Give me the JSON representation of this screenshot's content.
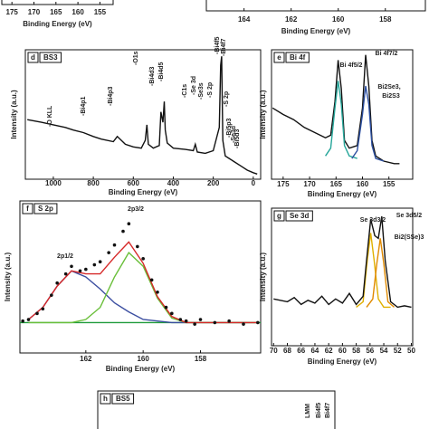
{
  "chart_data": [
    {
      "type": "line",
      "xlim": [
        177.3,
        152
      ],
      "xticks": [
        175,
        170,
        165,
        160,
        155
      ],
      "xlabel": "Binding Energy (eV)"
    },
    {
      "type": "line",
      "xlim": [
        165.6,
        156.3
      ],
      "xticks": [
        164,
        162,
        160,
        158
      ],
      "xlabel": "Binding Energy (eV)"
    },
    {
      "type": "line",
      "panel": "d",
      "title": "BS3",
      "xlim": [
        1140,
        -37
      ],
      "ylim": [
        0,
        100
      ],
      "xticks": [
        1000,
        800,
        600,
        400,
        200,
        0
      ],
      "xlabel": "Binding Energy (eV)",
      "ylabel": "Intensity (a.u.)",
      "series": [
        {
          "color": "#111111",
          "x": [
            1130,
            1060,
            1000,
            940,
            900,
            850,
            800,
            760,
            700,
            680,
            640,
            600,
            560,
            540,
            532,
            525,
            500,
            470,
            462,
            452,
            445,
            440,
            430,
            400,
            340,
            300,
            290,
            280,
            240,
            200,
            170,
            163,
            158,
            152,
            140,
            100,
            60,
            30,
            0,
            -20
          ],
          "values": [
            46,
            44,
            42,
            40,
            38,
            36,
            33,
            31,
            29,
            33,
            27,
            25,
            24,
            30,
            42,
            27,
            24,
            26,
            52,
            44,
            60,
            38,
            28,
            24,
            23,
            22,
            27,
            21,
            20,
            22,
            40,
            88,
            95,
            30,
            18,
            14,
            10,
            7,
            5,
            4
          ]
        }
      ],
      "annotations": [
        "-O KLL",
        "-Bi4p1",
        "-Bi4p3",
        "-O1s",
        "-Bi4d3",
        "-Bi4d5",
        "-C1s",
        "-Se 3d",
        "-Se3s",
        "-S 2p",
        "-Bi4f5",
        "-Bi4f7",
        "-S 2p",
        "-Bi5p3",
        "-Se3d",
        "-Bi5d3"
      ]
    },
    {
      "type": "line",
      "panel": "e",
      "title": "Bi 4f",
      "xlim": [
        177.2,
        150.5
      ],
      "ylim": [
        0,
        100
      ],
      "xticks": [
        175,
        170,
        165,
        160,
        155
      ],
      "xlabel": "Binding Energy (eV)",
      "ylabel": "Intensity (a.u.)",
      "series": [
        {
          "color": "#111111",
          "x": [
            177,
            175,
            173,
            171,
            169,
            167,
            166,
            165.2,
            164.6,
            164,
            163.4,
            162.5,
            161,
            160,
            159.4,
            158.8,
            158.2,
            157.5,
            156,
            154,
            153
          ],
          "values": [
            55,
            50,
            46,
            40,
            36,
            32,
            34,
            60,
            92,
            70,
            30,
            24,
            26,
            55,
            96,
            72,
            30,
            18,
            14,
            12,
            12
          ]
        },
        {
          "color": "#26a69a",
          "x": [
            167,
            166,
            165.2,
            164.6,
            164,
            163.4,
            162.5,
            161
          ],
          "values": [
            18,
            24,
            55,
            76,
            58,
            26,
            18,
            16
          ]
        },
        {
          "color": "#2c4fa0",
          "x": [
            162,
            161,
            160,
            159.4,
            158.8,
            158.2,
            157.5,
            156
          ],
          "values": [
            16,
            22,
            50,
            72,
            58,
            26,
            16,
            14
          ]
        }
      ],
      "annotations": [
        "Bi 4f5/2",
        "Bi 4f7/2",
        "Bi2Se3,",
        "Bi2S3"
      ]
    },
    {
      "type": "line",
      "panel": "f",
      "title": "S 2p",
      "xlim": [
        164.3,
        155.9
      ],
      "ylim": [
        0,
        100
      ],
      "xticks": [
        162,
        160,
        158
      ],
      "xlabel": "Binding Energy (eV)",
      "ylabel": "Intensity (a.u.)",
      "series": [
        {
          "color": "#1f9b3a",
          "x": [
            164.3,
            155.9
          ],
          "values": [
            20,
            20
          ]
        },
        {
          "color": "#3b4ea0",
          "x": [
            164,
            163.5,
            163,
            162.5,
            162,
            161.5,
            161,
            160.5,
            160,
            159.5,
            159,
            158.5,
            158,
            157,
            156
          ],
          "values": [
            22,
            30,
            44,
            54,
            50,
            42,
            33,
            27,
            22,
            21,
            20,
            20,
            20,
            20,
            20
          ]
        },
        {
          "color": "#6abf3a",
          "x": [
            164,
            163.5,
            163,
            162.5,
            162,
            161.5,
            161,
            160.5,
            160,
            159.5,
            159,
            158.5,
            158,
            157,
            156
          ],
          "values": [
            20,
            20,
            20,
            20,
            22,
            30,
            50,
            66,
            57,
            36,
            23,
            20,
            20,
            20,
            20
          ]
        },
        {
          "color": "#d62828",
          "x": [
            164,
            163.5,
            163,
            162.5,
            162,
            161.5,
            161,
            160.5,
            160,
            159.5,
            159,
            158.5,
            158,
            157,
            156
          ],
          "values": [
            22,
            30,
            44,
            54,
            52,
            52,
            63,
            73,
            59,
            37,
            24,
            20,
            20,
            20,
            20
          ]
        },
        {
          "color": "#111111",
          "style": "markers",
          "x": [
            164.2,
            164,
            163.7,
            163.5,
            163.2,
            163,
            162.7,
            162.5,
            162.2,
            162,
            161.7,
            161.5,
            161.2,
            161,
            160.7,
            160.5,
            160.2,
            160,
            159.7,
            159.5,
            159.2,
            159,
            158.7,
            158.5,
            158.2,
            158,
            157.5,
            157,
            156.5,
            156
          ],
          "values": [
            21,
            22,
            26,
            29,
            38,
            46,
            52,
            57,
            54,
            55,
            58,
            60,
            66,
            71,
            80,
            85,
            70,
            62,
            48,
            40,
            30,
            26,
            22,
            21,
            19,
            22,
            20,
            21,
            19,
            20
          ]
        }
      ],
      "annotations": [
        "2p3/2",
        "2p1/2"
      ]
    },
    {
      "type": "line",
      "panel": "g",
      "title": "Se 3d",
      "xlim": [
        70.3,
        49.8
      ],
      "ylim": [
        0,
        100
      ],
      "xticks": [
        70,
        68,
        66,
        64,
        62,
        60,
        58,
        56,
        54,
        52,
        50
      ],
      "xlabel": "Binding Energy (eV)",
      "ylabel": "Intensity (a.u.)",
      "series": [
        {
          "color": "#e0b000",
          "x": [
            58,
            57,
            56.4,
            55.9,
            55.4,
            54.8,
            54,
            53
          ],
          "values": [
            28,
            32,
            62,
            82,
            62,
            34,
            28,
            28
          ]
        },
        {
          "color": "#e08a00",
          "x": [
            56.5,
            55.6,
            55,
            54.5,
            54,
            53.4,
            52.5
          ],
          "values": [
            28,
            34,
            60,
            78,
            60,
            32,
            28
          ]
        },
        {
          "color": "#111111",
          "x": [
            70,
            68,
            67,
            66,
            65,
            64,
            63,
            62,
            61,
            60,
            59,
            58,
            57,
            56.5,
            55.9,
            55.3,
            54.8,
            54.3,
            53.8,
            53,
            52,
            51,
            50
          ],
          "values": [
            34,
            32,
            35,
            30,
            33,
            31,
            36,
            30,
            34,
            31,
            38,
            30,
            36,
            62,
            92,
            80,
            78,
            94,
            62,
            32,
            28,
            29,
            28
          ]
        }
      ],
      "annotations": [
        "Se 3d3/2",
        "Se 3d5/2",
        "Bi2(SSe)3"
      ]
    },
    {
      "type": "line",
      "panel": "h",
      "title": "BS5",
      "annotations": [
        "LMM",
        "Bi4f5",
        "Bi4f7"
      ]
    }
  ]
}
